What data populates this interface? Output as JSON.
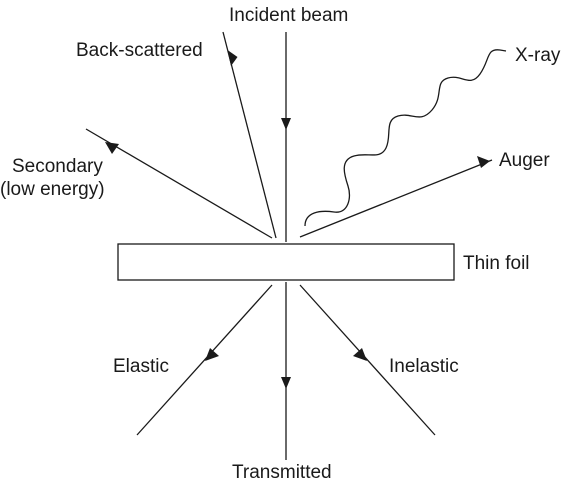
{
  "diagram": {
    "labels": {
      "incident": "Incident beam",
      "backscattered": "Back-scattered",
      "xray": "X-ray",
      "secondary_line1": "Secondary",
      "secondary_line2": "(low energy)",
      "auger": "Auger",
      "thin_foil": "Thin foil",
      "elastic": "Elastic",
      "inelastic": "Inelastic",
      "transmitted": "Transmitted"
    },
    "colors": {
      "stroke": "#1a1a1a",
      "background": "#ffffff"
    }
  }
}
